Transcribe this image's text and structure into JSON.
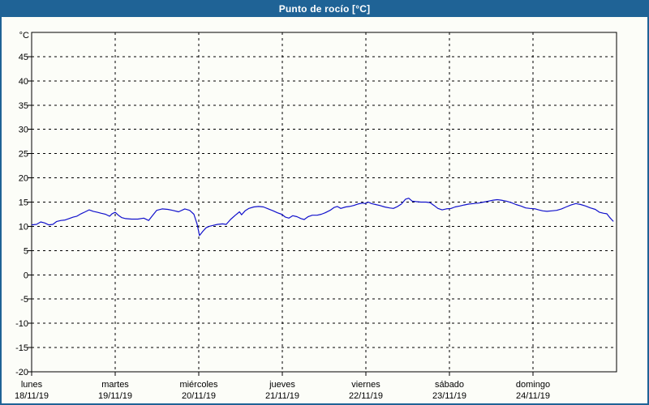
{
  "window": {
    "title": "Punto de rocío [°C]"
  },
  "colors": {
    "header_bg": "#1F6396",
    "window_border": "#1F6396",
    "title_text": "#FFFFFF",
    "content_bg": "#FCFDF8",
    "line": "#1111CC",
    "grid": "#000000",
    "axis": "#000000",
    "label_text": "#000000"
  },
  "chart_data": {
    "type": "line",
    "title": "Punto de rocío [°C]",
    "ylabel": "°C",
    "y_unit_label": "°C",
    "ylim": [
      -20,
      50
    ],
    "y_ticks": [
      45,
      40,
      35,
      30,
      25,
      20,
      15,
      10,
      5,
      0,
      -5,
      -10,
      -15,
      -20
    ],
    "grid": "dashed",
    "legend": "none",
    "x_range_days": 7,
    "x_labels_at": "day-start",
    "x_days": [
      {
        "name": "lunes",
        "date": "18/11/19"
      },
      {
        "name": "martes",
        "date": "19/11/19"
      },
      {
        "name": "miércoles",
        "date": "20/11/19"
      },
      {
        "name": "jueves",
        "date": "21/11/19"
      },
      {
        "name": "viernes",
        "date": "22/11/19"
      },
      {
        "name": "sábado",
        "date": "23/11/19"
      },
      {
        "name": "domingo",
        "date": "24/11/19"
      }
    ],
    "series": [
      {
        "name": "Punto de rocío",
        "unit": "°C",
        "color": "#1111CC",
        "points": [
          [
            0,
            10.3
          ],
          [
            1.4,
            10.4
          ],
          [
            2.6,
            10.9
          ],
          [
            3.7,
            10.7
          ],
          [
            4.9,
            10.3
          ],
          [
            6.1,
            10.4
          ],
          [
            7.2,
            11.0
          ],
          [
            8.4,
            11.2
          ],
          [
            9.6,
            11.3
          ],
          [
            10.7,
            11.6
          ],
          [
            11.9,
            11.9
          ],
          [
            13.0,
            12.1
          ],
          [
            14.2,
            12.6
          ],
          [
            15.4,
            13.0
          ],
          [
            16.5,
            13.4
          ],
          [
            17.7,
            13.1
          ],
          [
            18.9,
            12.9
          ],
          [
            20.0,
            12.7
          ],
          [
            21.2,
            12.5
          ],
          [
            22.4,
            12.1
          ],
          [
            23.1,
            12.6
          ],
          [
            24.0,
            12.9
          ],
          [
            24.9,
            12.3
          ],
          [
            25.9,
            11.8
          ],
          [
            27.0,
            11.6
          ],
          [
            28.7,
            11.5
          ],
          [
            30.5,
            11.5
          ],
          [
            32.2,
            11.7
          ],
          [
            33.6,
            11.2
          ],
          [
            34.7,
            12.2
          ],
          [
            35.9,
            13.3
          ],
          [
            37.5,
            13.6
          ],
          [
            39.1,
            13.5
          ],
          [
            40.5,
            13.3
          ],
          [
            42.2,
            13.0
          ],
          [
            44.0,
            13.6
          ],
          [
            45.4,
            13.3
          ],
          [
            46.6,
            12.5
          ],
          [
            47.5,
            10.5
          ],
          [
            48.2,
            8.1
          ],
          [
            49.2,
            9.0
          ],
          [
            50.1,
            9.7
          ],
          [
            51.0,
            10.0
          ],
          [
            52.2,
            10.2
          ],
          [
            53.4,
            10.4
          ],
          [
            54.8,
            10.5
          ],
          [
            55.9,
            10.4
          ],
          [
            57.1,
            11.4
          ],
          [
            58.5,
            12.3
          ],
          [
            59.7,
            13.0
          ],
          [
            60.3,
            12.4
          ],
          [
            61.3,
            13.2
          ],
          [
            62.4,
            13.7
          ],
          [
            63.8,
            14.0
          ],
          [
            65.2,
            14.1
          ],
          [
            66.6,
            14.0
          ],
          [
            68.0,
            13.6
          ],
          [
            69.4,
            13.2
          ],
          [
            70.6,
            12.8
          ],
          [
            71.8,
            12.5
          ],
          [
            72.9,
            11.9
          ],
          [
            73.9,
            11.7
          ],
          [
            75.0,
            12.2
          ],
          [
            76.2,
            12.0
          ],
          [
            77.4,
            11.6
          ],
          [
            78.3,
            11.4
          ],
          [
            79.4,
            12.0
          ],
          [
            80.6,
            12.3
          ],
          [
            82.0,
            12.3
          ],
          [
            83.2,
            12.5
          ],
          [
            84.3,
            12.8
          ],
          [
            85.7,
            13.3
          ],
          [
            86.9,
            13.9
          ],
          [
            87.8,
            14.1
          ],
          [
            88.8,
            13.7
          ],
          [
            90.2,
            14.0
          ],
          [
            91.3,
            14.1
          ],
          [
            92.5,
            14.3
          ],
          [
            93.7,
            14.6
          ],
          [
            95.1,
            14.8
          ],
          [
            95.8,
            14.7
          ],
          [
            96.7,
            15.0
          ],
          [
            97.6,
            14.7
          ],
          [
            98.8,
            14.5
          ],
          [
            100.0,
            14.3
          ],
          [
            101.4,
            14.0
          ],
          [
            102.8,
            13.8
          ],
          [
            103.9,
            13.7
          ],
          [
            105.1,
            14.1
          ],
          [
            106.2,
            14.6
          ],
          [
            107.4,
            15.6
          ],
          [
            108.3,
            15.8
          ],
          [
            109.3,
            15.2
          ],
          [
            110.4,
            15.1
          ],
          [
            111.8,
            15.0
          ],
          [
            113.3,
            15.0
          ],
          [
            114.4,
            14.9
          ],
          [
            115.6,
            14.3
          ],
          [
            116.7,
            13.7
          ],
          [
            117.9,
            13.4
          ],
          [
            119.1,
            13.6
          ],
          [
            120.5,
            13.7
          ],
          [
            121.6,
            14.0
          ],
          [
            123.0,
            14.2
          ],
          [
            124.2,
            14.4
          ],
          [
            125.6,
            14.6
          ],
          [
            127.0,
            14.7
          ],
          [
            128.4,
            14.8
          ],
          [
            129.8,
            15.0
          ],
          [
            131.2,
            15.2
          ],
          [
            132.6,
            15.4
          ],
          [
            133.7,
            15.5
          ],
          [
            134.9,
            15.4
          ],
          [
            136.3,
            15.2
          ],
          [
            137.7,
            14.9
          ],
          [
            139.1,
            14.5
          ],
          [
            140.5,
            14.2
          ],
          [
            141.9,
            13.8
          ],
          [
            143.1,
            13.7
          ],
          [
            144.7,
            13.6
          ],
          [
            145.6,
            13.4
          ],
          [
            146.8,
            13.2
          ],
          [
            148.0,
            13.1
          ],
          [
            149.4,
            13.2
          ],
          [
            150.8,
            13.3
          ],
          [
            152.2,
            13.6
          ],
          [
            153.5,
            14.0
          ],
          [
            154.9,
            14.4
          ],
          [
            156.3,
            14.7
          ],
          [
            157.7,
            14.5
          ],
          [
            159.1,
            14.2
          ],
          [
            160.5,
            13.8
          ],
          [
            161.9,
            13.5
          ],
          [
            163.1,
            12.9
          ],
          [
            164.3,
            12.7
          ],
          [
            165.2,
            12.6
          ],
          [
            166.1,
            11.8
          ],
          [
            167.1,
            11.0
          ]
        ]
      }
    ]
  }
}
